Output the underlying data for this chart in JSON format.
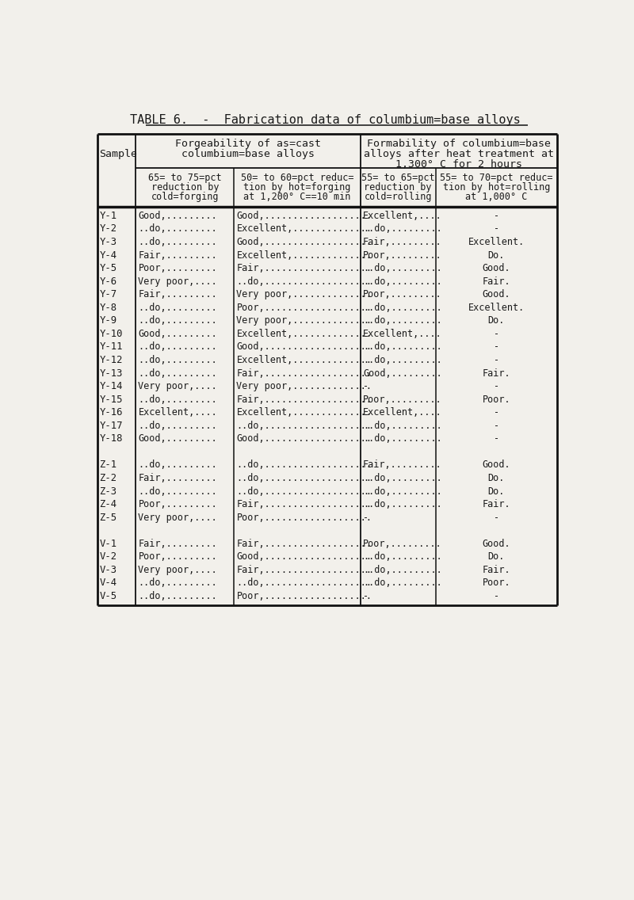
{
  "title": "TABLE 6.  -  Fabrication data of columbium=base alloys",
  "group_header1": "Forgeability of as=cast\ncolumbium=base alloys",
  "group_header2": "Formability of columbium=base\nalloys after heat treatment at\n1,300° C for 2 hours",
  "sub_header1": "65= to 75=pct\nreduction by\ncold=forging",
  "sub_header2": "50= to 60=pct reduc=\ntion by hot=forging\nat 1,200° C==10 min",
  "sub_header3": "55= to 65=pct\nreduction by\ncold=rolling",
  "sub_header4": "55= to 70=pct reduc=\ntion by hot=rolling\nat 1,000° C",
  "rows": [
    [
      "Y-1",
      "Good,.........",
      "Good,...................",
      "Excellent,....",
      "-"
    ],
    [
      "Y-2",
      "..do,.........",
      "Excellent,..............",
      "..do,.........",
      "-"
    ],
    [
      "Y-3",
      "..do,.........",
      "Good,...................",
      "Fair,.........",
      "Excellent."
    ],
    [
      "Y-4",
      "Fair,.........",
      "Excellent,..............",
      "Poor,.........",
      "Do."
    ],
    [
      "Y-5",
      "Poor,.........",
      "Fair,...................",
      "..do,.........",
      "Good."
    ],
    [
      "Y-6",
      "Very poor,....",
      "..do,...................",
      "..do,.........",
      "Fair."
    ],
    [
      "Y-7",
      "Fair,.........",
      "Very poor,..............",
      "Poor,.........",
      "Good."
    ],
    [
      "Y-8",
      "..do,.........",
      "Poor,...................",
      "..do,.........",
      "Excellent."
    ],
    [
      "Y-9",
      "..do,.........",
      "Very poor,..............",
      "..do,.........",
      "Do."
    ],
    [
      "Y-10",
      "Good,.........",
      "Excellent,..............",
      "Excellent,....",
      "-"
    ],
    [
      "Y-11",
      "..do,.........",
      "Good,...................",
      "..do,.........",
      "-"
    ],
    [
      "Y-12",
      "..do,.........",
      "Excellent,..............",
      "..do,.........",
      "-"
    ],
    [
      "Y-13",
      "..do,.........",
      "Fair,...................",
      "Good,.........",
      "Fair."
    ],
    [
      "Y-14",
      "Very poor,....",
      "Very poor,..............",
      "-",
      "-"
    ],
    [
      "Y-15",
      "..do,.........",
      "Fair,...................",
      "Poor,.........",
      "Poor."
    ],
    [
      "Y-16",
      "Excellent,....",
      "Excellent,..............",
      "Excellent,....",
      "-"
    ],
    [
      "Y-17",
      "..do,.........",
      "..do,...................",
      "..do,.........",
      "-"
    ],
    [
      "Y-18",
      "Good,.........",
      "Good,...................",
      "..do,.........",
      "-"
    ],
    [
      "Z-1",
      "..do,.........",
      "..do,...................",
      "Fair,.........",
      "Good."
    ],
    [
      "Z-2",
      "Fair,.........",
      "..do,...................",
      "..do,.........",
      "Do."
    ],
    [
      "Z-3",
      "..do,.........",
      "..do,...................",
      "..do,.........",
      "Do."
    ],
    [
      "Z-4",
      "Poor,.........",
      "Fair,...................",
      "..do,.........",
      "Fair."
    ],
    [
      "Z-5",
      "Very poor,....",
      "Poor,...................",
      "-",
      "-"
    ],
    [
      "V-1",
      "Fair,.........",
      "Fair,...................",
      "Poor,.........",
      "Good."
    ],
    [
      "V-2",
      "Poor,.........",
      "Good,...................",
      "..do,.........",
      "Do."
    ],
    [
      "V-3",
      "Very poor,....",
      "Fair,...................",
      "..do,.........",
      "Fair."
    ],
    [
      "V-4",
      "..do,.........",
      "..do,...................",
      "..do,.........",
      "Poor."
    ],
    [
      "V-5",
      "..do,.........",
      "Poor,...................",
      "-",
      "-"
    ]
  ],
  "group_breaks": [
    18,
    23
  ],
  "bg_color": "#f2f0eb",
  "text_color": "#1a1a1a",
  "title_underline_color": "#333333"
}
